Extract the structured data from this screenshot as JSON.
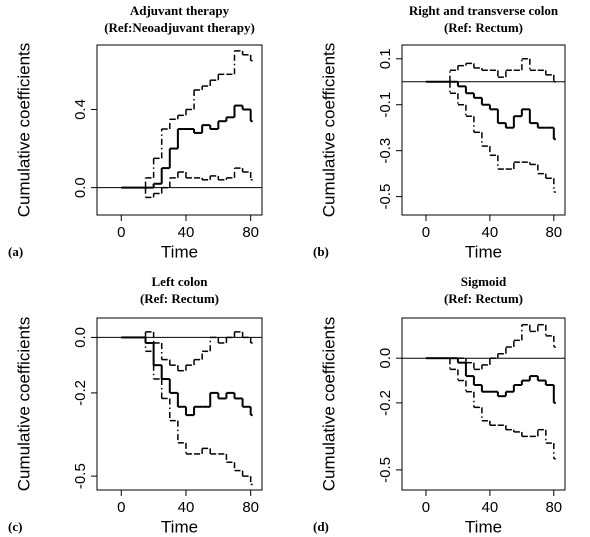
{
  "chart_data": [
    {
      "type": "step",
      "title": "Adjuvant therapy",
      "subtitle": "(Ref:Neoadjuvant therapy)",
      "tag": "(a)",
      "x_label": "Time",
      "y_label": "Cumulative coefficients",
      "x": [
        0,
        5,
        10,
        15,
        20,
        25,
        30,
        35,
        40,
        45,
        50,
        55,
        60,
        65,
        70,
        75,
        80
      ],
      "xlim": [
        -15,
        87
      ],
      "xticks": [
        0,
        40,
        80
      ],
      "ylim": [
        -0.14,
        0.73
      ],
      "yticks": [
        {
          "value": 0,
          "label": "0.0"
        },
        0.4
      ],
      "reference_line": 0,
      "series": [
        {
          "style": "solid",
          "color": "#000000",
          "values": [
            0,
            0,
            0,
            0,
            0.02,
            0.1,
            0.2,
            0.3,
            0.3,
            0.28,
            0.32,
            0.3,
            0.34,
            0.36,
            0.42,
            0.4,
            0.34
          ]
        },
        {
          "style": "dashdot",
          "color": "#000000",
          "values": [
            0,
            0,
            0,
            0.05,
            0.15,
            0.3,
            0.35,
            0.37,
            0.4,
            0.5,
            0.52,
            0.55,
            0.58,
            0.58,
            0.7,
            0.68,
            0.65
          ]
        },
        {
          "style": "dashdot",
          "color": "#000000",
          "values": [
            0,
            0,
            0,
            -0.05,
            -0.03,
            0,
            0.05,
            0.08,
            0.05,
            0.05,
            0.04,
            0.06,
            0.04,
            0.05,
            0.1,
            0.08,
            0.04
          ]
        }
      ]
    },
    {
      "type": "step",
      "title": "Right and transverse colon",
      "subtitle": "(Ref: Rectum)",
      "tag": "(b)",
      "x_label": "Time",
      "y_label": "Cumulative coefficients",
      "x": [
        0,
        5,
        10,
        15,
        20,
        25,
        30,
        35,
        40,
        45,
        50,
        55,
        60,
        65,
        70,
        75,
        80
      ],
      "xlim": [
        -15,
        87
      ],
      "xticks": [
        0,
        40,
        80
      ],
      "ylim": [
        -0.58,
        0.16
      ],
      "yticks": [
        -0.5,
        -0.3,
        -0.1,
        0.1
      ],
      "reference_line": 0,
      "series": [
        {
          "style": "solid",
          "color": "#000000",
          "values": [
            0,
            0,
            0,
            0,
            -0.02,
            -0.05,
            -0.07,
            -0.1,
            -0.12,
            -0.18,
            -0.2,
            -0.15,
            -0.12,
            -0.18,
            -0.2,
            -0.2,
            -0.25
          ]
        },
        {
          "style": "dashdot",
          "color": "#000000",
          "values": [
            0,
            0,
            0,
            0.05,
            0.07,
            0.08,
            0.06,
            0.05,
            0.05,
            0.02,
            0.05,
            0.05,
            0.1,
            0.05,
            0.05,
            0.03,
            0
          ]
        },
        {
          "style": "dashdot",
          "color": "#000000",
          "values": [
            0,
            0,
            0,
            -0.05,
            -0.1,
            -0.15,
            -0.22,
            -0.28,
            -0.32,
            -0.38,
            -0.38,
            -0.35,
            -0.35,
            -0.36,
            -0.4,
            -0.42,
            -0.48
          ]
        }
      ]
    },
    {
      "type": "step",
      "title": "Left colon",
      "subtitle": "(Ref: Rectum)",
      "tag": "(c)",
      "x_label": "Time",
      "y_label": "Cumulative coefficients",
      "x": [
        0,
        5,
        10,
        15,
        20,
        25,
        30,
        35,
        40,
        45,
        50,
        55,
        60,
        65,
        70,
        75,
        80
      ],
      "xlim": [
        -15,
        87
      ],
      "xticks": [
        0,
        40,
        80
      ],
      "ylim": [
        -0.55,
        0.07
      ],
      "yticks": [
        -0.5,
        -0.2,
        {
          "value": 0,
          "label": "0.0"
        }
      ],
      "reference_line": 0,
      "series": [
        {
          "style": "solid",
          "color": "#000000",
          "values": [
            0,
            0,
            0,
            -0.02,
            -0.1,
            -0.15,
            -0.2,
            -0.25,
            -0.28,
            -0.25,
            -0.25,
            -0.2,
            -0.22,
            -0.2,
            -0.22,
            -0.25,
            -0.28
          ]
        },
        {
          "style": "dashdot",
          "color": "#000000",
          "values": [
            0,
            0,
            0,
            0.02,
            -0.02,
            -0.08,
            -0.1,
            -0.12,
            -0.1,
            -0.08,
            -0.05,
            0,
            -0.02,
            0,
            0.02,
            0,
            -0.02
          ]
        },
        {
          "style": "dashdot",
          "color": "#000000",
          "values": [
            0,
            0,
            0,
            -0.05,
            -0.15,
            -0.22,
            -0.3,
            -0.38,
            -0.42,
            -0.42,
            -0.4,
            -0.42,
            -0.42,
            -0.45,
            -0.48,
            -0.5,
            -0.53
          ]
        }
      ]
    },
    {
      "type": "step",
      "title": "Sigmoid",
      "subtitle": "(Ref: Rectum)",
      "tag": "(d)",
      "x_label": "Time",
      "y_label": "Cumulative coefficients",
      "x": [
        0,
        5,
        10,
        15,
        20,
        25,
        30,
        35,
        40,
        45,
        50,
        55,
        60,
        65,
        70,
        75,
        80
      ],
      "xlim": [
        -15,
        87
      ],
      "xticks": [
        0,
        40,
        80
      ],
      "ylim": [
        -0.59,
        0.18
      ],
      "yticks": [
        -0.5,
        -0.2,
        {
          "value": 0,
          "label": "0.0"
        }
      ],
      "reference_line": 0,
      "series": [
        {
          "style": "solid",
          "color": "#000000",
          "values": [
            0,
            0,
            0,
            0,
            -0.02,
            -0.08,
            -0.12,
            -0.15,
            -0.15,
            -0.17,
            -0.15,
            -0.12,
            -0.1,
            -0.08,
            -0.1,
            -0.12,
            -0.2
          ]
        },
        {
          "style": "dashdot",
          "color": "#000000",
          "values": [
            0,
            0,
            0,
            0,
            0,
            -0.02,
            -0.05,
            -0.03,
            0,
            0.02,
            0.05,
            0.08,
            0.15,
            0.12,
            0.15,
            0.1,
            0.05
          ]
        },
        {
          "style": "dashdot",
          "color": "#000000",
          "values": [
            0,
            0,
            0,
            -0.05,
            -0.1,
            -0.15,
            -0.22,
            -0.28,
            -0.3,
            -0.3,
            -0.32,
            -0.33,
            -0.35,
            -0.35,
            -0.32,
            -0.38,
            -0.45
          ]
        }
      ]
    }
  ]
}
